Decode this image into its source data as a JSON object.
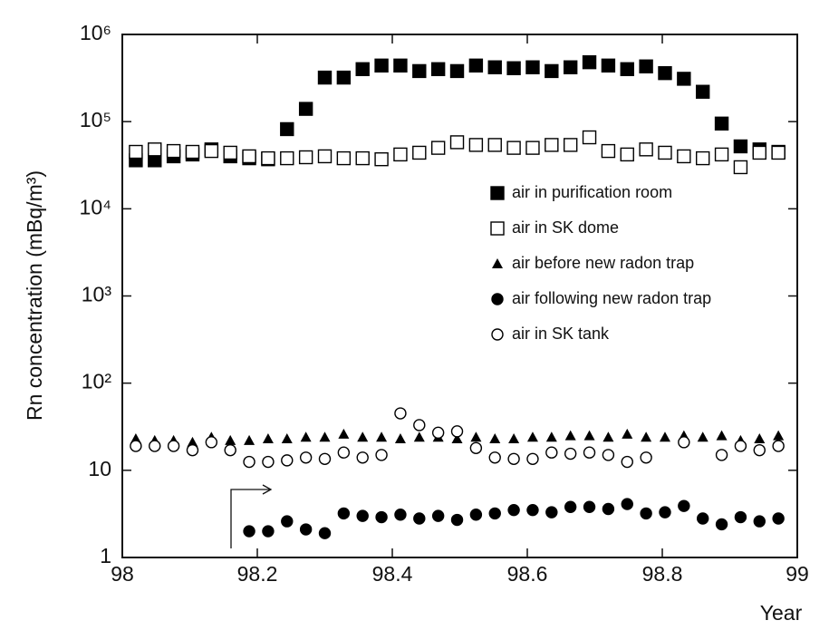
{
  "chart_data": {
    "type": "scatter",
    "xlabel": "Year",
    "ylabel": "Rn concentration (mBq/m³)",
    "xlim": [
      98,
      99
    ],
    "xticks": [
      98,
      98.2,
      98.4,
      98.6,
      98.8,
      99
    ],
    "ylim": [
      1,
      1000000
    ],
    "yscale": "log",
    "yticks": [
      1,
      10,
      {
        "value": 100,
        "label": "10²"
      },
      {
        "value": 1000,
        "label": "10³"
      },
      {
        "value": 10000,
        "label": "10⁴"
      },
      {
        "value": 100000,
        "label": "10⁵"
      },
      {
        "value": 1000000,
        "label": "10⁶"
      }
    ],
    "legend": "upper right",
    "x": [
      98.02,
      98.048,
      98.076,
      98.104,
      98.132,
      98.16,
      98.188,
      98.216,
      98.244,
      98.272,
      98.3,
      98.328,
      98.356,
      98.384,
      98.412,
      98.44,
      98.468,
      98.496,
      98.524,
      98.552,
      98.58,
      98.608,
      98.636,
      98.664,
      98.692,
      98.72,
      98.748,
      98.776,
      98.804,
      98.832,
      98.86,
      98.888,
      98.916,
      98.944,
      98.972
    ],
    "series": [
      {
        "name": "air in purification room",
        "color": "#000000",
        "marker": "square-filled",
        "values": [
          36000,
          36000,
          40000,
          42000,
          48000,
          40000,
          38000,
          37000,
          82000,
          140000,
          320000,
          320000,
          400000,
          440000,
          440000,
          380000,
          400000,
          380000,
          440000,
          420000,
          410000,
          420000,
          380000,
          420000,
          480000,
          440000,
          400000,
          430000,
          360000,
          310000,
          220000,
          95000,
          52000,
          48000,
          45000
        ]
      },
      {
        "name": "air in SK dome",
        "color": "#000000",
        "marker": "square-open",
        "values": [
          45000,
          48000,
          46000,
          45000,
          46000,
          44000,
          40000,
          38000,
          38000,
          39000,
          40000,
          38000,
          38000,
          37000,
          42000,
          44000,
          50000,
          58000,
          54000,
          54000,
          50000,
          50000,
          54000,
          54000,
          66000,
          46000,
          42000,
          48000,
          44000,
          40000,
          38000,
          42000,
          30000,
          44000,
          44000
        ]
      },
      {
        "name": "air before new radon trap",
        "color": "#000000",
        "marker": "triangle-filled",
        "values": [
          23,
          22,
          22,
          21,
          24,
          22,
          22,
          23,
          23,
          24,
          24,
          26,
          24,
          24,
          23,
          24,
          24,
          23,
          24,
          23,
          23,
          24,
          24,
          25,
          25,
          24,
          26,
          24,
          24,
          25,
          24,
          25,
          22,
          23,
          25
        ]
      },
      {
        "name": "air following new radon trap",
        "color": "#000000",
        "marker": "circle-filled",
        "values": [
          null,
          null,
          null,
          null,
          null,
          null,
          2.0,
          2.0,
          2.6,
          2.1,
          1.9,
          3.2,
          3.0,
          2.9,
          3.1,
          2.8,
          3.0,
          2.7,
          3.1,
          3.2,
          3.5,
          3.5,
          3.3,
          3.8,
          3.8,
          3.6,
          4.1,
          3.2,
          3.3,
          3.9,
          2.8,
          2.4,
          2.9,
          2.6,
          2.8
        ]
      },
      {
        "name": "air in SK tank",
        "color": "#000000",
        "marker": "circle-open",
        "values": [
          19,
          19,
          19,
          17,
          21,
          17,
          12.5,
          12.5,
          13,
          14,
          13.5,
          16,
          14,
          15,
          45,
          33,
          27,
          28,
          18,
          14,
          13.5,
          13.5,
          16,
          15.5,
          16,
          15,
          12.5,
          14,
          null,
          21,
          null,
          15,
          19,
          17,
          19
        ]
      }
    ]
  }
}
